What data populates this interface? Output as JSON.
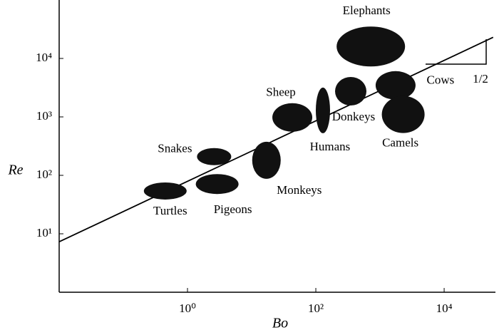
{
  "chart_data": {
    "type": "scatter",
    "xscale": "log",
    "yscale": "log",
    "color": "#111111",
    "xlabel": "Bo",
    "ylabel": "Re",
    "xlim": [
      0.01,
      63000
    ],
    "ylim": [
      1,
      100000
    ],
    "xticks": [
      {
        "value": 1,
        "label": "10⁰"
      },
      {
        "value": 100,
        "label": "10²"
      },
      {
        "value": 10000,
        "label": "10⁴"
      }
    ],
    "yticks": [
      {
        "value": 10,
        "label": "10¹"
      },
      {
        "value": 100,
        "label": "10²"
      },
      {
        "value": 1000,
        "label": "10³"
      },
      {
        "value": 10000,
        "label": "10⁴"
      }
    ],
    "points": [
      {
        "label": "Turtles",
        "x": 0.45,
        "y": 54
      },
      {
        "label": "Pigeons",
        "x": 2.9,
        "y": 71
      },
      {
        "label": "Snakes",
        "x": 2.6,
        "y": 209
      },
      {
        "label": "Monkeys",
        "x": 17,
        "y": 181
      },
      {
        "label": "Sheep",
        "x": 43,
        "y": 980
      },
      {
        "label": "Humans",
        "x": 129,
        "y": 1290
      },
      {
        "label": "Donkeys",
        "x": 350,
        "y": 2750
      },
      {
        "label": "Cows",
        "x": 1750,
        "y": 3460
      },
      {
        "label": "Camels",
        "x": 2300,
        "y": 1100
      },
      {
        "label": "Elephants",
        "x": 720,
        "y": 16000
      }
    ],
    "fit_line": {
      "x": [
        0.01,
        58000
      ],
      "y": [
        7.3,
        23000
      ]
    },
    "slope_label": "1/2"
  }
}
